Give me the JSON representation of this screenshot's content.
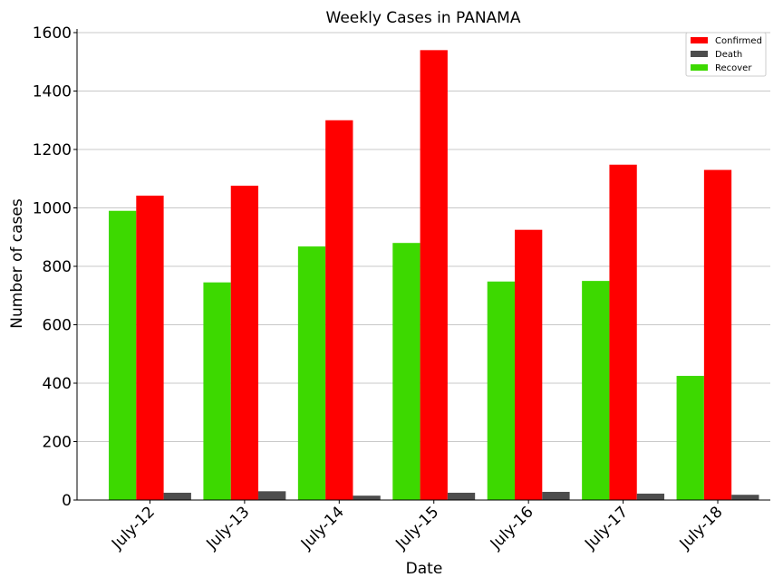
{
  "chart_data": {
    "type": "bar",
    "title": "Weekly Cases in PANAMA",
    "xlabel": "Date",
    "ylabel": "Number of cases",
    "categories": [
      "July-12",
      "July-13",
      "July-14",
      "July-15",
      "July-16",
      "July-17",
      "July-18"
    ],
    "ylim": [
      0,
      1600
    ],
    "yticks": [
      0,
      200,
      400,
      600,
      800,
      1000,
      1200,
      1400,
      1600
    ],
    "grid": "horizontal",
    "legend_position": "top-right",
    "series": [
      {
        "name": "Recover",
        "color": "#3dd900",
        "values": [
          990,
          745,
          868,
          880,
          748,
          750,
          425
        ]
      },
      {
        "name": "Confirmed",
        "color": "#ff0000",
        "values": [
          1042,
          1076,
          1300,
          1540,
          925,
          1148,
          1130
        ]
      },
      {
        "name": "Death",
        "color": "#4d4d4d",
        "values": [
          25,
          30,
          15,
          25,
          28,
          22,
          18
        ]
      }
    ],
    "legend_order": [
      "Confirmed",
      "Death",
      "Recover"
    ]
  }
}
